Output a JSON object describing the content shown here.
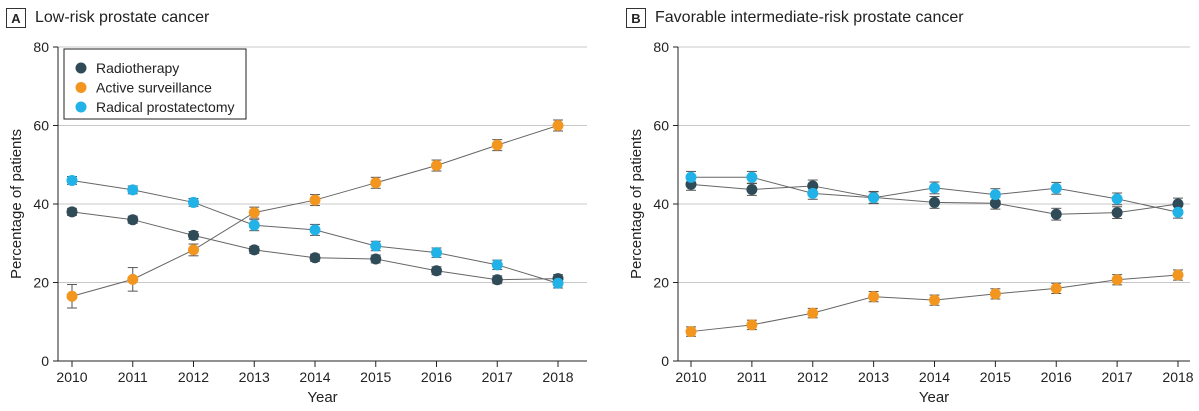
{
  "chart_data": [
    {
      "id": "A",
      "type": "line",
      "title": "Low-risk prostate cancer",
      "xlabel": "Year",
      "ylabel": "Percentage of patients",
      "ylim": [
        0,
        80
      ],
      "yticks": [
        0,
        20,
        40,
        60,
        80
      ],
      "categories": [
        "2010",
        "2011",
        "2012",
        "2013",
        "2014",
        "2015",
        "2016",
        "2017",
        "2018"
      ],
      "grid": true,
      "legend": "top-left",
      "series": [
        {
          "name": "Radiotherapy",
          "color": "#2f4b57",
          "values": [
            38,
            36,
            32,
            28.3,
            26.3,
            26,
            23,
            20.7,
            21
          ],
          "err": [
            0.9,
            0.9,
            1.0,
            0.9,
            0.9,
            1.0,
            1.0,
            1.0,
            1.0
          ]
        },
        {
          "name": "Active surveillance",
          "color": "#f2961f",
          "values": [
            16.5,
            20.8,
            28.3,
            37.8,
            41,
            45.4,
            49.8,
            55,
            60
          ],
          "err": [
            3.0,
            3.0,
            1.5,
            1.4,
            1.4,
            1.4,
            1.4,
            1.4,
            1.4
          ]
        },
        {
          "name": "Radical prostatectomy",
          "color": "#21b3e8",
          "values": [
            46,
            43.6,
            40.4,
            34.6,
            33.4,
            29.3,
            27.6,
            24.5,
            19.8
          ],
          "err": [
            1.0,
            1.0,
            1.0,
            1.4,
            1.4,
            1.2,
            1.2,
            1.2,
            1.2
          ]
        }
      ]
    },
    {
      "id": "B",
      "type": "line",
      "title": "Favorable intermediate-risk prostate cancer",
      "xlabel": "Year",
      "ylabel": "Percentage of patients",
      "ylim": [
        0,
        80
      ],
      "yticks": [
        0,
        20,
        40,
        60,
        80
      ],
      "categories": [
        "2010",
        "2011",
        "2012",
        "2013",
        "2014",
        "2015",
        "2016",
        "2017",
        "2018"
      ],
      "grid": true,
      "legend": "none",
      "series": [
        {
          "name": "Radiotherapy",
          "color": "#2f4b57",
          "values": [
            45,
            43.7,
            44.6,
            41.7,
            40.4,
            40.2,
            37.4,
            37.8,
            40
          ],
          "err": [
            1.5,
            1.5,
            1.5,
            1.5,
            1.5,
            1.5,
            1.5,
            1.5,
            1.5
          ]
        },
        {
          "name": "Active surveillance",
          "color": "#f2961f",
          "values": [
            7.5,
            9.2,
            12.2,
            16.4,
            15.5,
            17.1,
            18.5,
            20.7,
            21.9
          ],
          "err": [
            1.2,
            1.2,
            1.2,
            1.3,
            1.3,
            1.3,
            1.3,
            1.3,
            1.3
          ]
        },
        {
          "name": "Radical prostatectomy",
          "color": "#21b3e8",
          "values": [
            46.8,
            46.8,
            42.7,
            41.6,
            44.1,
            42.4,
            44,
            41.3,
            37.9
          ],
          "err": [
            1.5,
            1.5,
            1.5,
            1.5,
            1.5,
            1.5,
            1.5,
            1.5,
            1.5
          ]
        }
      ]
    }
  ]
}
